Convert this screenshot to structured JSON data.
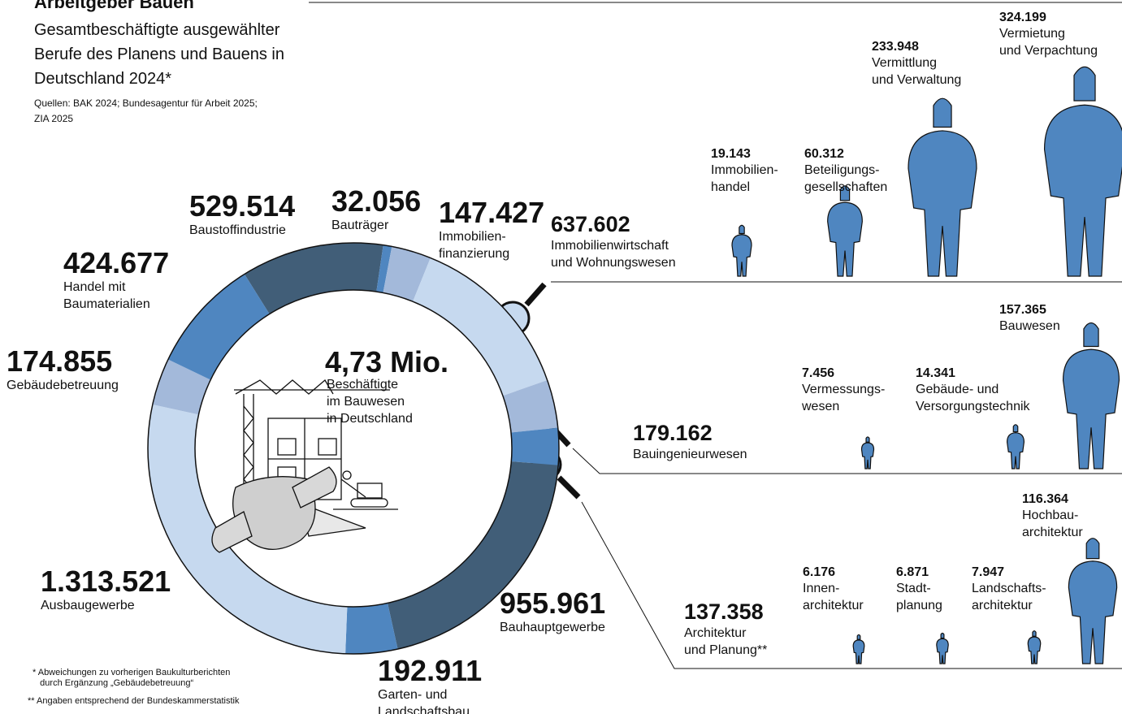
{
  "chart_data": {
    "type": "pie",
    "title": "Arbeitgeber Bauen",
    "subtitle": "Gesamtbeschäftigte ausgewählter\nBerufe des Planens und Bauens in\nDeutschland 2024*",
    "source": "Quellen: BAK 2024; Bundesagentur für Arbeit 2025;\nZIA 2025",
    "total_label": "4,73 Mio.",
    "center_label": "Beschäftigte\nim Bauwesen\nin Deutschland",
    "categories": [
      "Baustoffindustrie",
      "Bauträger",
      "Immobilien-\nfinanzierung",
      "Immobilienwirtschaft\nund Wohnungswesen",
      "Bauingenieurwesen",
      "Architektur\nund Planung**",
      "Bauhauptgewerbe",
      "Garten- und\nLandschaftsbau",
      "Ausbaugewerbe",
      "Gebäudebetreuung",
      "Handel mit\nBaumaterialien"
    ],
    "values": [
      529514,
      32056,
      147427,
      637602,
      179162,
      137358,
      955961,
      192911,
      1313521,
      174855,
      424677
    ],
    "value_labels": [
      "529.514",
      "32.056",
      "147.427",
      "637.602",
      "179.162",
      "137.358",
      "955.961",
      "192.911",
      "1.313.521",
      "174.855",
      "424.677"
    ],
    "colors": [
      "#415e78",
      "#4f86c0",
      "#a3b9da",
      "#c6d9ef",
      "#a3b9da",
      "#4f86c0",
      "#415e78",
      "#4f86c0",
      "#c6d9ef",
      "#a3b9da",
      "#4f86c0"
    ],
    "breakdowns": [
      {
        "members": [
          {
            "name": "Immobilien-\nhandel",
            "value": 19143,
            "value_label": "19.143"
          },
          {
            "name": "Beteiligungs-\ngesellschaften",
            "value": 60312,
            "value_label": "60.312"
          },
          {
            "name": "Vermittlung\nund Verwaltung",
            "value": 233948,
            "value_label": "233.948"
          },
          {
            "name": "Vermietung\nund Verpachtung",
            "value": 324199,
            "value_label": "324.199"
          }
        ]
      },
      {
        "members": [
          {
            "name": "Vermessungs-\nwesen",
            "value": 7456,
            "value_label": "7.456"
          },
          {
            "name": "Gebäude- und\nVersorgungstechnik",
            "value": 14341,
            "value_label": "14.341"
          },
          {
            "name": "Bauwesen",
            "value": 157365,
            "value_label": "157.365"
          }
        ]
      },
      {
        "members": [
          {
            "name": "Innen-\narchitektur",
            "value": 6176,
            "value_label": "6.176"
          },
          {
            "name": "Stadt-\nplanung",
            "value": 6871,
            "value_label": "6.871"
          },
          {
            "name": "Landschafts-\narchitektur",
            "value": 7947,
            "value_label": "7.947"
          },
          {
            "name": "Hochbau-\narchitektur",
            "value": 116364,
            "value_label": "116.364"
          }
        ]
      }
    ],
    "footnotes": [
      "* Abweichungen zu vorherigen Baukulturberichten\n   durch Ergänzung „Gebäudebetreuung“",
      "** Angaben entsprechend der Bundeskammerstatistik"
    ]
  }
}
